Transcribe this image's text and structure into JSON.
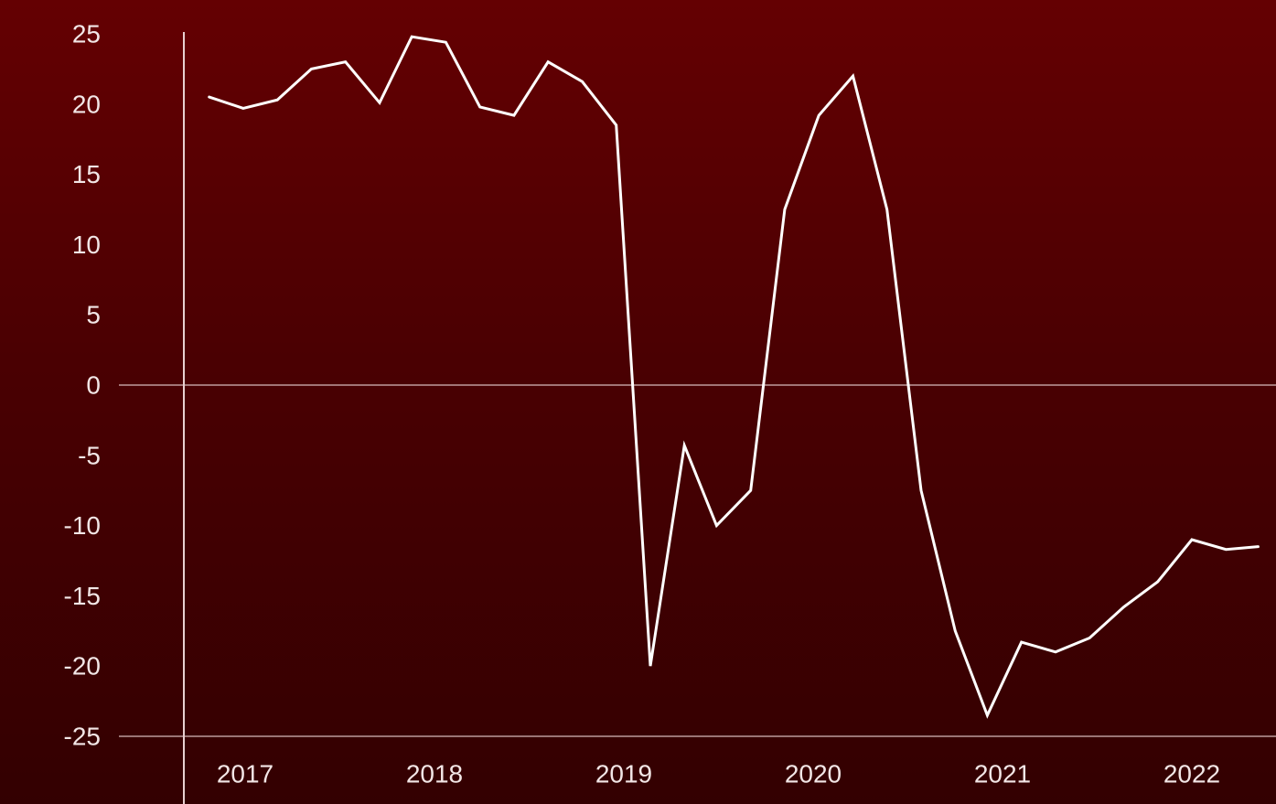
{
  "colors": {
    "background_top": "#640002",
    "background_bottom": "#330001",
    "line": "#ffffff",
    "axis": "#e8d0d0",
    "text": "#f2e6e6"
  },
  "chart_data": {
    "type": "line",
    "title": "",
    "xlabel": "",
    "ylabel": "",
    "ylim": [
      -25,
      25
    ],
    "xlim": [
      2016.68,
      2022.35
    ],
    "yticks": [
      25,
      20,
      15,
      10,
      5,
      0,
      -5,
      -10,
      -15,
      -20,
      -25
    ],
    "ytick_labels": [
      "25",
      "20",
      "15",
      "10",
      "5",
      "0",
      "-5",
      "-10",
      "-15",
      "-20",
      "-25"
    ],
    "xticks": [
      2017,
      2018,
      2019,
      2020,
      2021,
      2022
    ],
    "xtick_labels": [
      "2017",
      "2018",
      "2019",
      "2020",
      "2021",
      "2022"
    ],
    "grid": false,
    "reference_lines": [
      0,
      -25
    ],
    "series": [
      {
        "x": [
          2016.81,
          2016.99,
          2017.17,
          2017.35,
          2017.53,
          2017.71,
          2017.88,
          2018.06,
          2018.24,
          2018.42,
          2018.6,
          2018.78,
          2018.96,
          2019.14,
          2019.32,
          2019.49,
          2019.67,
          2019.85,
          2020.03,
          2020.21,
          2020.39,
          2020.57,
          2020.75,
          2020.92,
          2021.1,
          2021.28,
          2021.46,
          2021.64,
          2021.82,
          2022.0,
          2022.18,
          2022.35
        ],
        "values": [
          20.5,
          19.7,
          20.3,
          22.5,
          23.0,
          20.1,
          24.8,
          24.4,
          19.8,
          19.2,
          23.0,
          21.6,
          18.5,
          -20.0,
          -4.3,
          -10.0,
          -7.5,
          12.5,
          19.2,
          22.0,
          12.5,
          -7.5,
          -17.5,
          -23.5,
          -18.3,
          -19.0,
          -18.0,
          -15.8,
          -14.0,
          -11.0,
          -11.7,
          -11.5
        ]
      }
    ]
  }
}
